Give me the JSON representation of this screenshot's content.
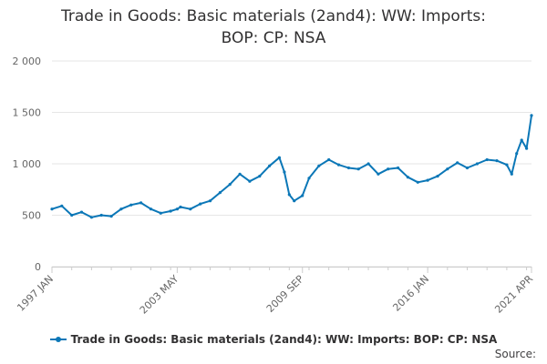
{
  "title": {
    "line1": "Trade in Goods: Basic materials (2and4): WW: Imports:",
    "line2": "BOP: CP: NSA"
  },
  "legend": {
    "label": "Trade in Goods: Basic materials (2and4): WW: Imports: BOP: CP: NSA"
  },
  "source_label": "Source:",
  "colors": {
    "series": "#0b77b7",
    "grid": "#e6e6e6",
    "axis_text": "#666666"
  },
  "chart_data": {
    "type": "line",
    "title": "Trade in Goods: Basic materials (2and4): WW: Imports: BOP: CP: NSA",
    "xlabel": "",
    "ylabel": "",
    "ylim": [
      0,
      2000
    ],
    "yticks": [
      0,
      500,
      1000,
      1500,
      2000
    ],
    "ytick_labels": [
      "0",
      "500",
      "1 000",
      "1 500",
      "2 000"
    ],
    "xticks": [
      "1997 JAN",
      "2003 MAY",
      "2009 SEP",
      "2016 JAN",
      "2021 APR"
    ],
    "grid": true,
    "legend_position": "bottom",
    "series": [
      {
        "name": "Trade in Goods: Basic materials (2and4): WW: Imports: BOP: CP: NSA",
        "x": [
          "1997 JAN",
          "1997 JUL",
          "1998 JAN",
          "1998 JUL",
          "1999 JAN",
          "1999 JUL",
          "2000 JAN",
          "2000 JUL",
          "2001 JAN",
          "2001 JUL",
          "2002 JAN",
          "2002 JUL",
          "2003 JAN",
          "2003 MAY",
          "2003 JUL",
          "2004 JAN",
          "2004 JUL",
          "2005 JAN",
          "2005 JUL",
          "2006 JAN",
          "2006 JUL",
          "2007 JAN",
          "2007 JUL",
          "2008 JAN",
          "2008 JUL",
          "2008 OCT",
          "2009 JAN",
          "2009 APR",
          "2009 SEP",
          "2010 JAN",
          "2010 JUL",
          "2011 JAN",
          "2011 JUL",
          "2012 JAN",
          "2012 JUL",
          "2013 JAN",
          "2013 JUL",
          "2014 JAN",
          "2014 JUL",
          "2015 JAN",
          "2015 JUL",
          "2016 JAN",
          "2016 JUL",
          "2017 JAN",
          "2017 JUL",
          "2018 JAN",
          "2018 JUL",
          "2019 JAN",
          "2019 JUL",
          "2020 JAN",
          "2020 APR",
          "2020 JUL",
          "2020 OCT",
          "2021 JAN",
          "2021 APR"
        ],
        "values": [
          560,
          590,
          500,
          530,
          480,
          500,
          490,
          560,
          600,
          620,
          560,
          520,
          540,
          560,
          580,
          560,
          610,
          640,
          720,
          800,
          900,
          830,
          880,
          980,
          1060,
          920,
          700,
          640,
          690,
          860,
          980,
          1040,
          990,
          960,
          950,
          1000,
          900,
          950,
          960,
          870,
          820,
          840,
          880,
          950,
          1010,
          960,
          1000,
          1040,
          1030,
          990,
          900,
          1100,
          1230,
          1150,
          1470
        ]
      }
    ]
  }
}
